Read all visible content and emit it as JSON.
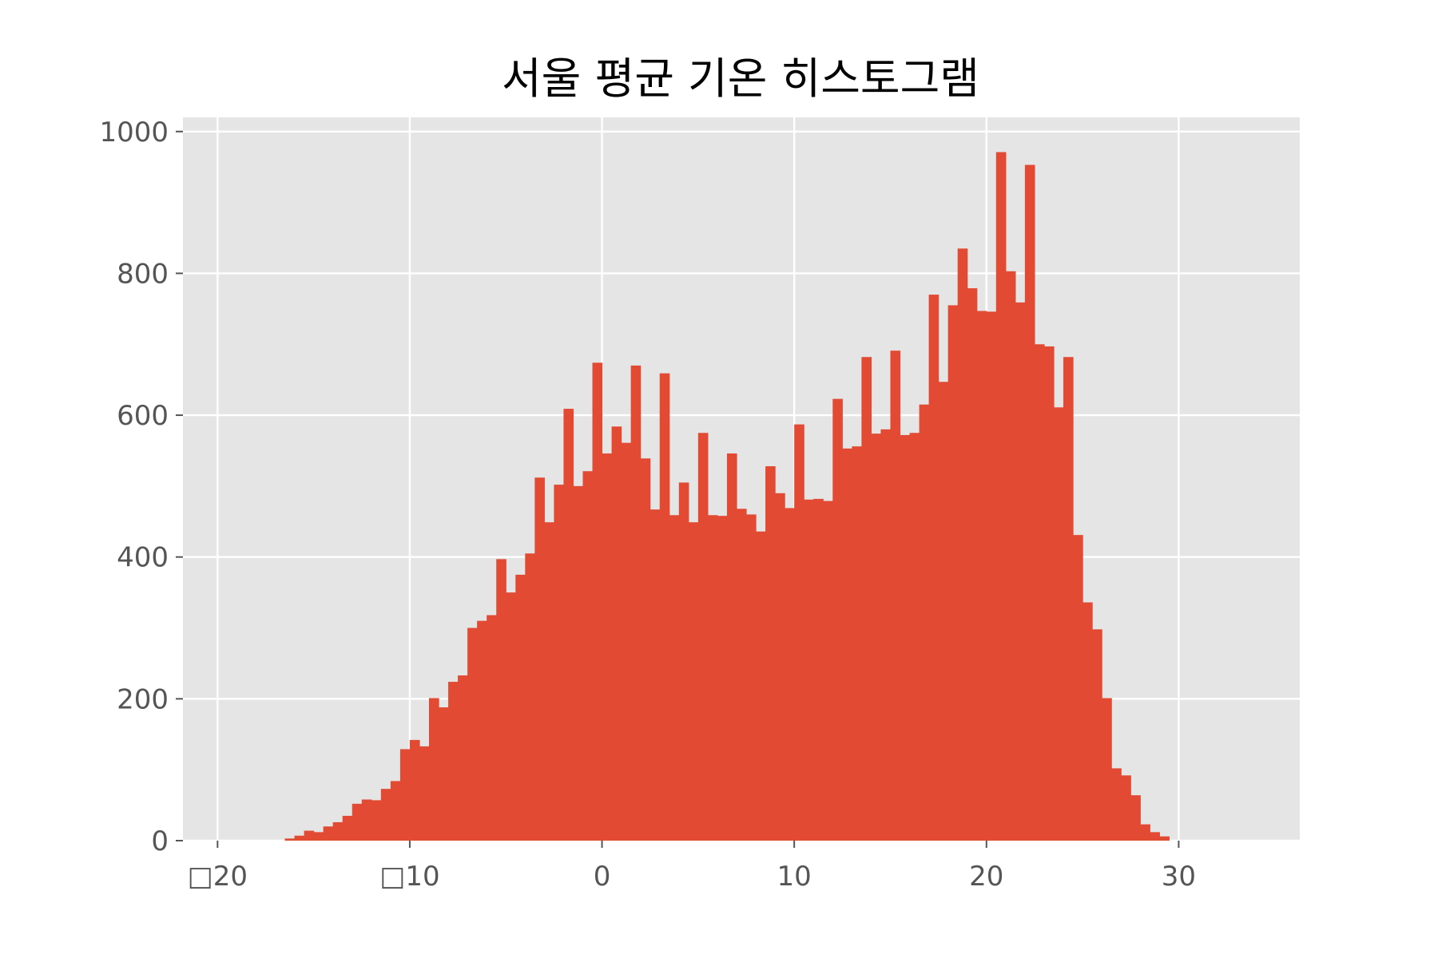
{
  "chart_data": {
    "type": "bar",
    "title": "서울 평균 기온 히스토그램",
    "xlabel": "",
    "ylabel": "",
    "xlim": [
      -21.8,
      36.3
    ],
    "ylim": [
      0,
      1020
    ],
    "grid": true,
    "legend": "none",
    "colors": {
      "bar": "#E24A33",
      "plot_bg": "#E5E5E5",
      "grid": "#FFFFFF",
      "text": "#555555",
      "title": "#000000"
    },
    "x_ticks": [
      {
        "value": -20,
        "label": "□20"
      },
      {
        "value": -10,
        "label": "□10"
      },
      {
        "value": 0,
        "label": "0"
      },
      {
        "value": 10,
        "label": "10"
      },
      {
        "value": 20,
        "label": "20"
      },
      {
        "value": 30,
        "label": "30"
      }
    ],
    "y_ticks": [
      {
        "value": 0,
        "label": "0"
      },
      {
        "value": 200,
        "label": "200"
      },
      {
        "value": 400,
        "label": "400"
      },
      {
        "value": 600,
        "label": "600"
      },
      {
        "value": 800,
        "label": "800"
      },
      {
        "value": 1000,
        "label": "1000"
      }
    ],
    "bin_start": -16.5,
    "bin_width": 0.5,
    "values": [
      3,
      7,
      14,
      12,
      20,
      26,
      35,
      52,
      58,
      57,
      73,
      84,
      129,
      142,
      133,
      201,
      188,
      224,
      233,
      300,
      310,
      318,
      397,
      350,
      375,
      405,
      512,
      449,
      502,
      609,
      500,
      521,
      674,
      546,
      584,
      561,
      670,
      539,
      467,
      659,
      459,
      505,
      449,
      575,
      459,
      458,
      546,
      468,
      460,
      436,
      528,
      490,
      469,
      587,
      481,
      482,
      479,
      623,
      553,
      556,
      682,
      574,
      580,
      691,
      572,
      575,
      615,
      770,
      647,
      755,
      835,
      779,
      747,
      746,
      971,
      803,
      759,
      953,
      700,
      697,
      611,
      682,
      431,
      336,
      298,
      201,
      102,
      92,
      64,
      23,
      12,
      6
    ]
  }
}
